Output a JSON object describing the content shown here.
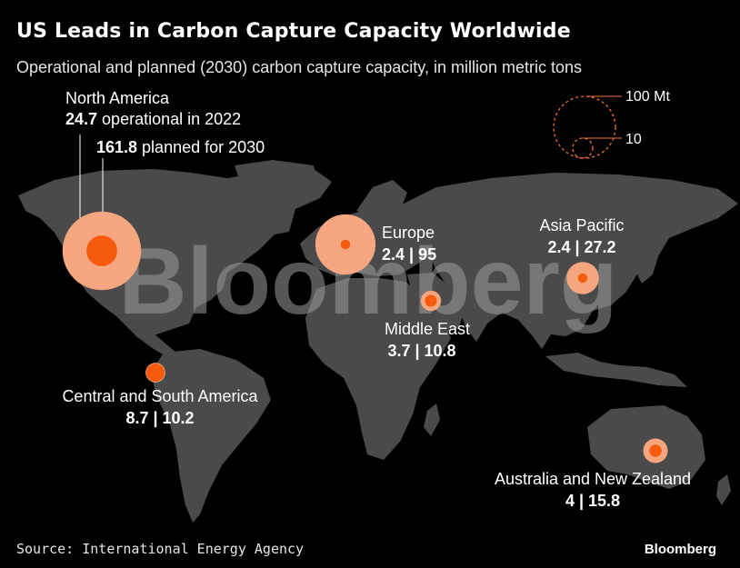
{
  "title": "US Leads in Carbon Capture Capacity Worldwide",
  "subtitle": "Operational and planned (2030) carbon capture capacity, in million metric tons",
  "legend": {
    "large": "100 Mt",
    "small": "10"
  },
  "regions": [
    {
      "id": "north-america",
      "name": "North America",
      "operational": 24.7,
      "planned": 161.8,
      "text_operational": "24.7",
      "text_operational_suffix": " operational in 2022",
      "text_planned": "161.8",
      "text_planned_suffix": " planned for 2030"
    },
    {
      "id": "europe",
      "name": "Europe",
      "operational": 2.4,
      "planned": 95,
      "text_values": "2.4 | 95"
    },
    {
      "id": "asia-pacific",
      "name": "Asia Pacific",
      "operational": 2.4,
      "planned": 27.2,
      "text_values": "2.4 | 27.2"
    },
    {
      "id": "middle-east",
      "name": "Middle East",
      "operational": 3.7,
      "planned": 10.8,
      "text_values": "3.7 | 10.8"
    },
    {
      "id": "central-south-america",
      "name": "Central and South America",
      "operational": 8.7,
      "planned": 10.2,
      "text_values": "8.7 | 10.2"
    },
    {
      "id": "australia-nz",
      "name": "Australia and New Zealand",
      "operational": 4,
      "planned": 15.8,
      "text_values": "4 | 15.8"
    }
  ],
  "watermark": "Bloomberg",
  "source": "Source: International Energy Agency",
  "brand": "Bloomberg",
  "colors": {
    "background": "#000000",
    "land": "#4a4a4a",
    "planned_circle": "#f7a77f",
    "operational_circle": "#f45b0c",
    "legend_stroke": "#f0703a"
  }
}
